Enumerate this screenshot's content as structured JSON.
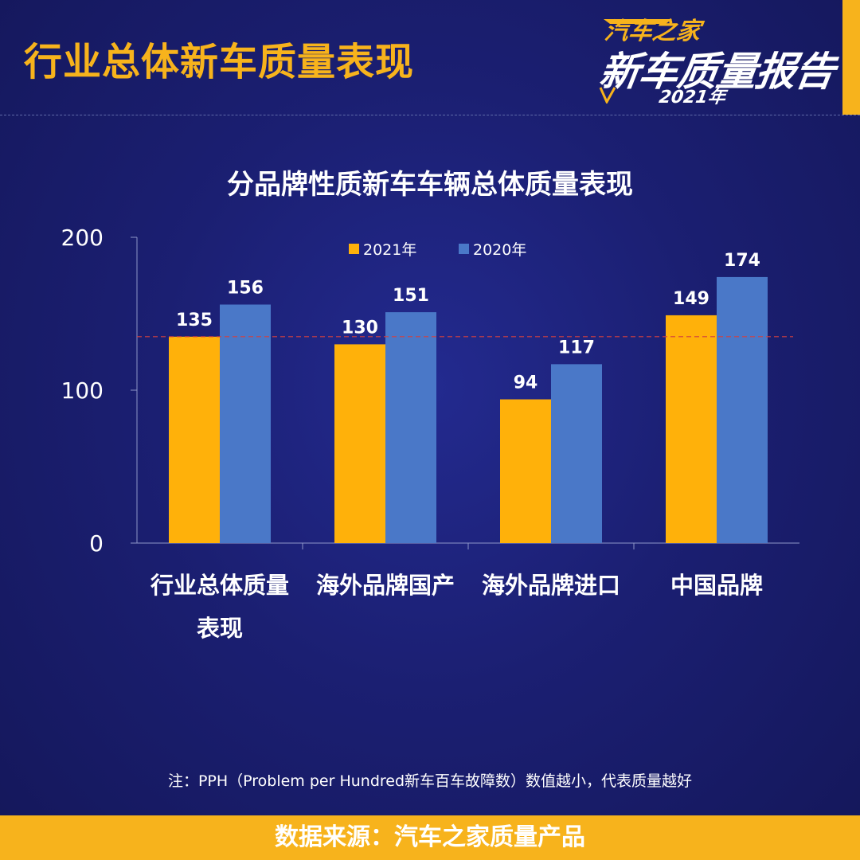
{
  "header": {
    "title": "行业总体新车质量表现",
    "logo": {
      "brand": "汽车之家",
      "report": "新车质量报告",
      "year": "2021年"
    }
  },
  "colors": {
    "background": "#1b1f72",
    "accent": "#f7b31c",
    "series_2021": "#ffb10a",
    "series_2020": "#4a78c8",
    "reference_line": "#d24040"
  },
  "chart_data": {
    "type": "bar",
    "title": "分品牌性质新车车辆总体质量表现",
    "categories": [
      "行业总体质量表现",
      "海外品牌国产",
      "海外品牌进口",
      "中国品牌"
    ],
    "category_lines": [
      [
        "行业总体质量",
        "表现"
      ],
      [
        "海外品牌国产"
      ],
      [
        "海外品牌进口"
      ],
      [
        "中国品牌"
      ]
    ],
    "series": [
      {
        "name": "2021年",
        "values": [
          135,
          130,
          94,
          149
        ],
        "color": "#ffb10a"
      },
      {
        "name": "2020年",
        "values": [
          156,
          151,
          117,
          174
        ],
        "color": "#4a78c8"
      }
    ],
    "ylim": [
      0,
      200
    ],
    "yticks": [
      0,
      100,
      200
    ],
    "reference_line": 135,
    "legend_position": "top-center",
    "grid": false
  },
  "note": "注：PPH（Problem per Hundred新车百车故障数）数值越小，代表质量越好",
  "footer": "数据来源：汽车之家质量产品"
}
